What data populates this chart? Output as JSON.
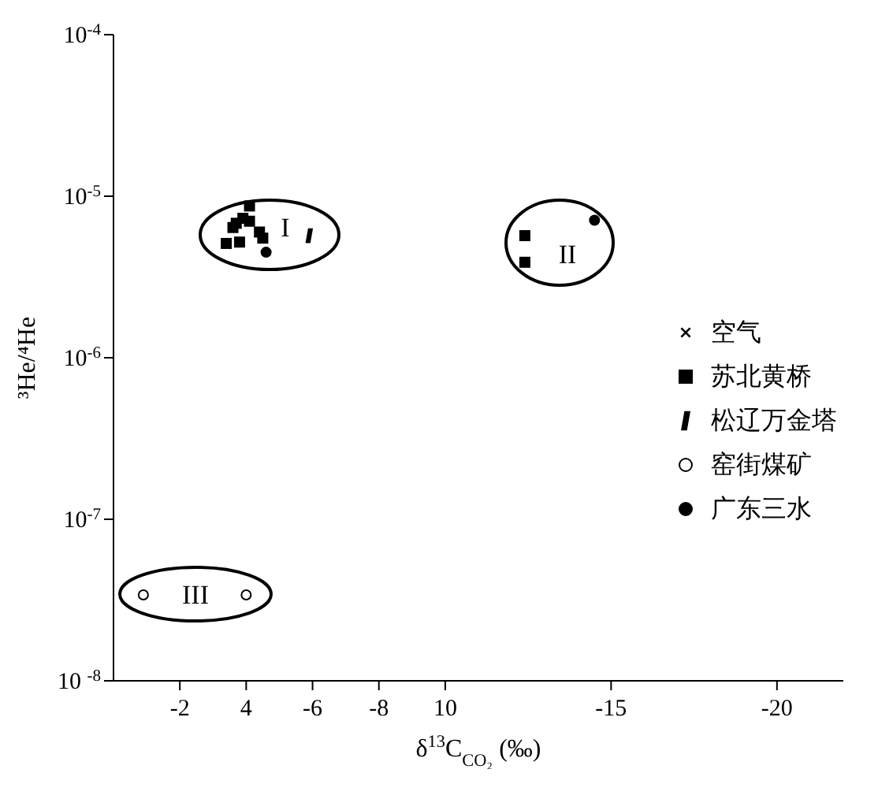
{
  "chart_data": {
    "type": "scatter",
    "xlabel": "δ$^{13}$C$_{CO₂}$ (‰)",
    "ylabel": "³He/⁴He",
    "log": "y",
    "legend": "right",
    "xlim": [
      0,
      -22
    ],
    "xticks": [
      -2,
      {
        "value": -4,
        "label": "4"
      },
      -6,
      -8,
      {
        "value": -10,
        "label": "10"
      },
      -15,
      -20
    ],
    "ylim": [
      1e-08,
      0.0001
    ],
    "yticks": [
      {
        "value": 1e-08,
        "label": "10 $^{-8}$"
      },
      {
        "value": 1e-07,
        "label": "10$^{-7}$"
      },
      {
        "value": 1e-06,
        "label": "10$^{-6}$"
      },
      {
        "value": 1e-05,
        "label": "10$^{-5}$"
      },
      {
        "value": 0.0001,
        "label": "10$^{-4}$"
      }
    ],
    "series": [
      {
        "name": "空气",
        "color": "#000000",
        "marker": "cross"
      },
      {
        "name": "苏北黄桥",
        "color": "#000000",
        "marker": "square",
        "x": [
          -3.4,
          -3.8,
          -3.6,
          -3.7,
          -3.9,
          -4.1,
          -4.1,
          -4.4,
          -4.5,
          -12.4,
          -12.4
        ],
        "values": [
          5.1e-06,
          5.2e-06,
          6.4e-06,
          6.8e-06,
          7.3e-06,
          8.7e-06,
          7e-06,
          6e-06,
          5.5e-06,
          5.7e-06,
          3.9e-06
        ]
      },
      {
        "name": "松辽万金塔",
        "color": "#000000",
        "marker": "diamond",
        "x": [
          -5.9
        ],
        "values": [
          5.7e-06
        ]
      },
      {
        "name": "窑街煤矿",
        "color": "#ffffff",
        "marker": "circle",
        "x": [
          -0.9,
          -4.0
        ],
        "values": [
          3.4e-08,
          3.4e-08
        ]
      },
      {
        "name": "广东三水",
        "color": "#000000",
        "marker": "circle",
        "x": [
          -4.6,
          -14.5
        ],
        "values": [
          4.5e-06,
          7.1e-06
        ]
      }
    ],
    "annotations": [
      "I",
      "II",
      "III"
    ]
  }
}
